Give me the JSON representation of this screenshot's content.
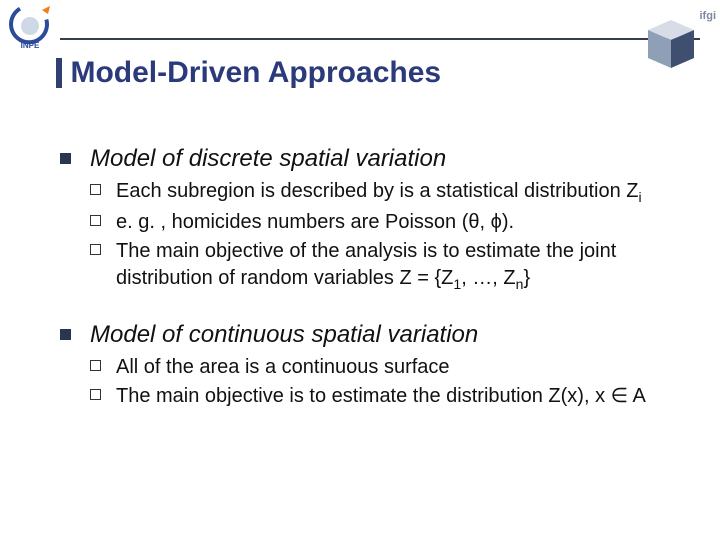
{
  "header": {
    "ifgi_label": "ifgi",
    "title": "Model-Driven Approaches",
    "logo_left": {
      "label": "INPE",
      "ring_color": "#2d4b9b",
      "arrow_color": "#f07d1a"
    },
    "logo_right": {
      "top_face": "#d7dde6",
      "left_face": "#8f9fb5",
      "right_face": "#3f4f70"
    },
    "rule_color": "#333f4f",
    "title_color": "#2b3a7a"
  },
  "sections": [
    {
      "heading": "Model of discrete spatial variation",
      "items": [
        {
          "html": "Each subregion is described by is a statistical distribution Z<span class=\"sub\">i</span>"
        },
        {
          "html": "e. g. , homicides numbers are Poisson (θ, ϕ)."
        },
        {
          "html": "The main objective of the analysis is to estimate the joint distribution of random variables Z = {Z<span class=\"sub\">1</span>, …, Z<span class=\"sub\">n</span>}"
        }
      ]
    },
    {
      "heading": "Model of continuous spatial variation",
      "items": [
        {
          "html": "All of the area is a continuous surface"
        },
        {
          "html": "The main objective is to estimate the distribution Z(x), x ∈ A"
        }
      ]
    }
  ]
}
